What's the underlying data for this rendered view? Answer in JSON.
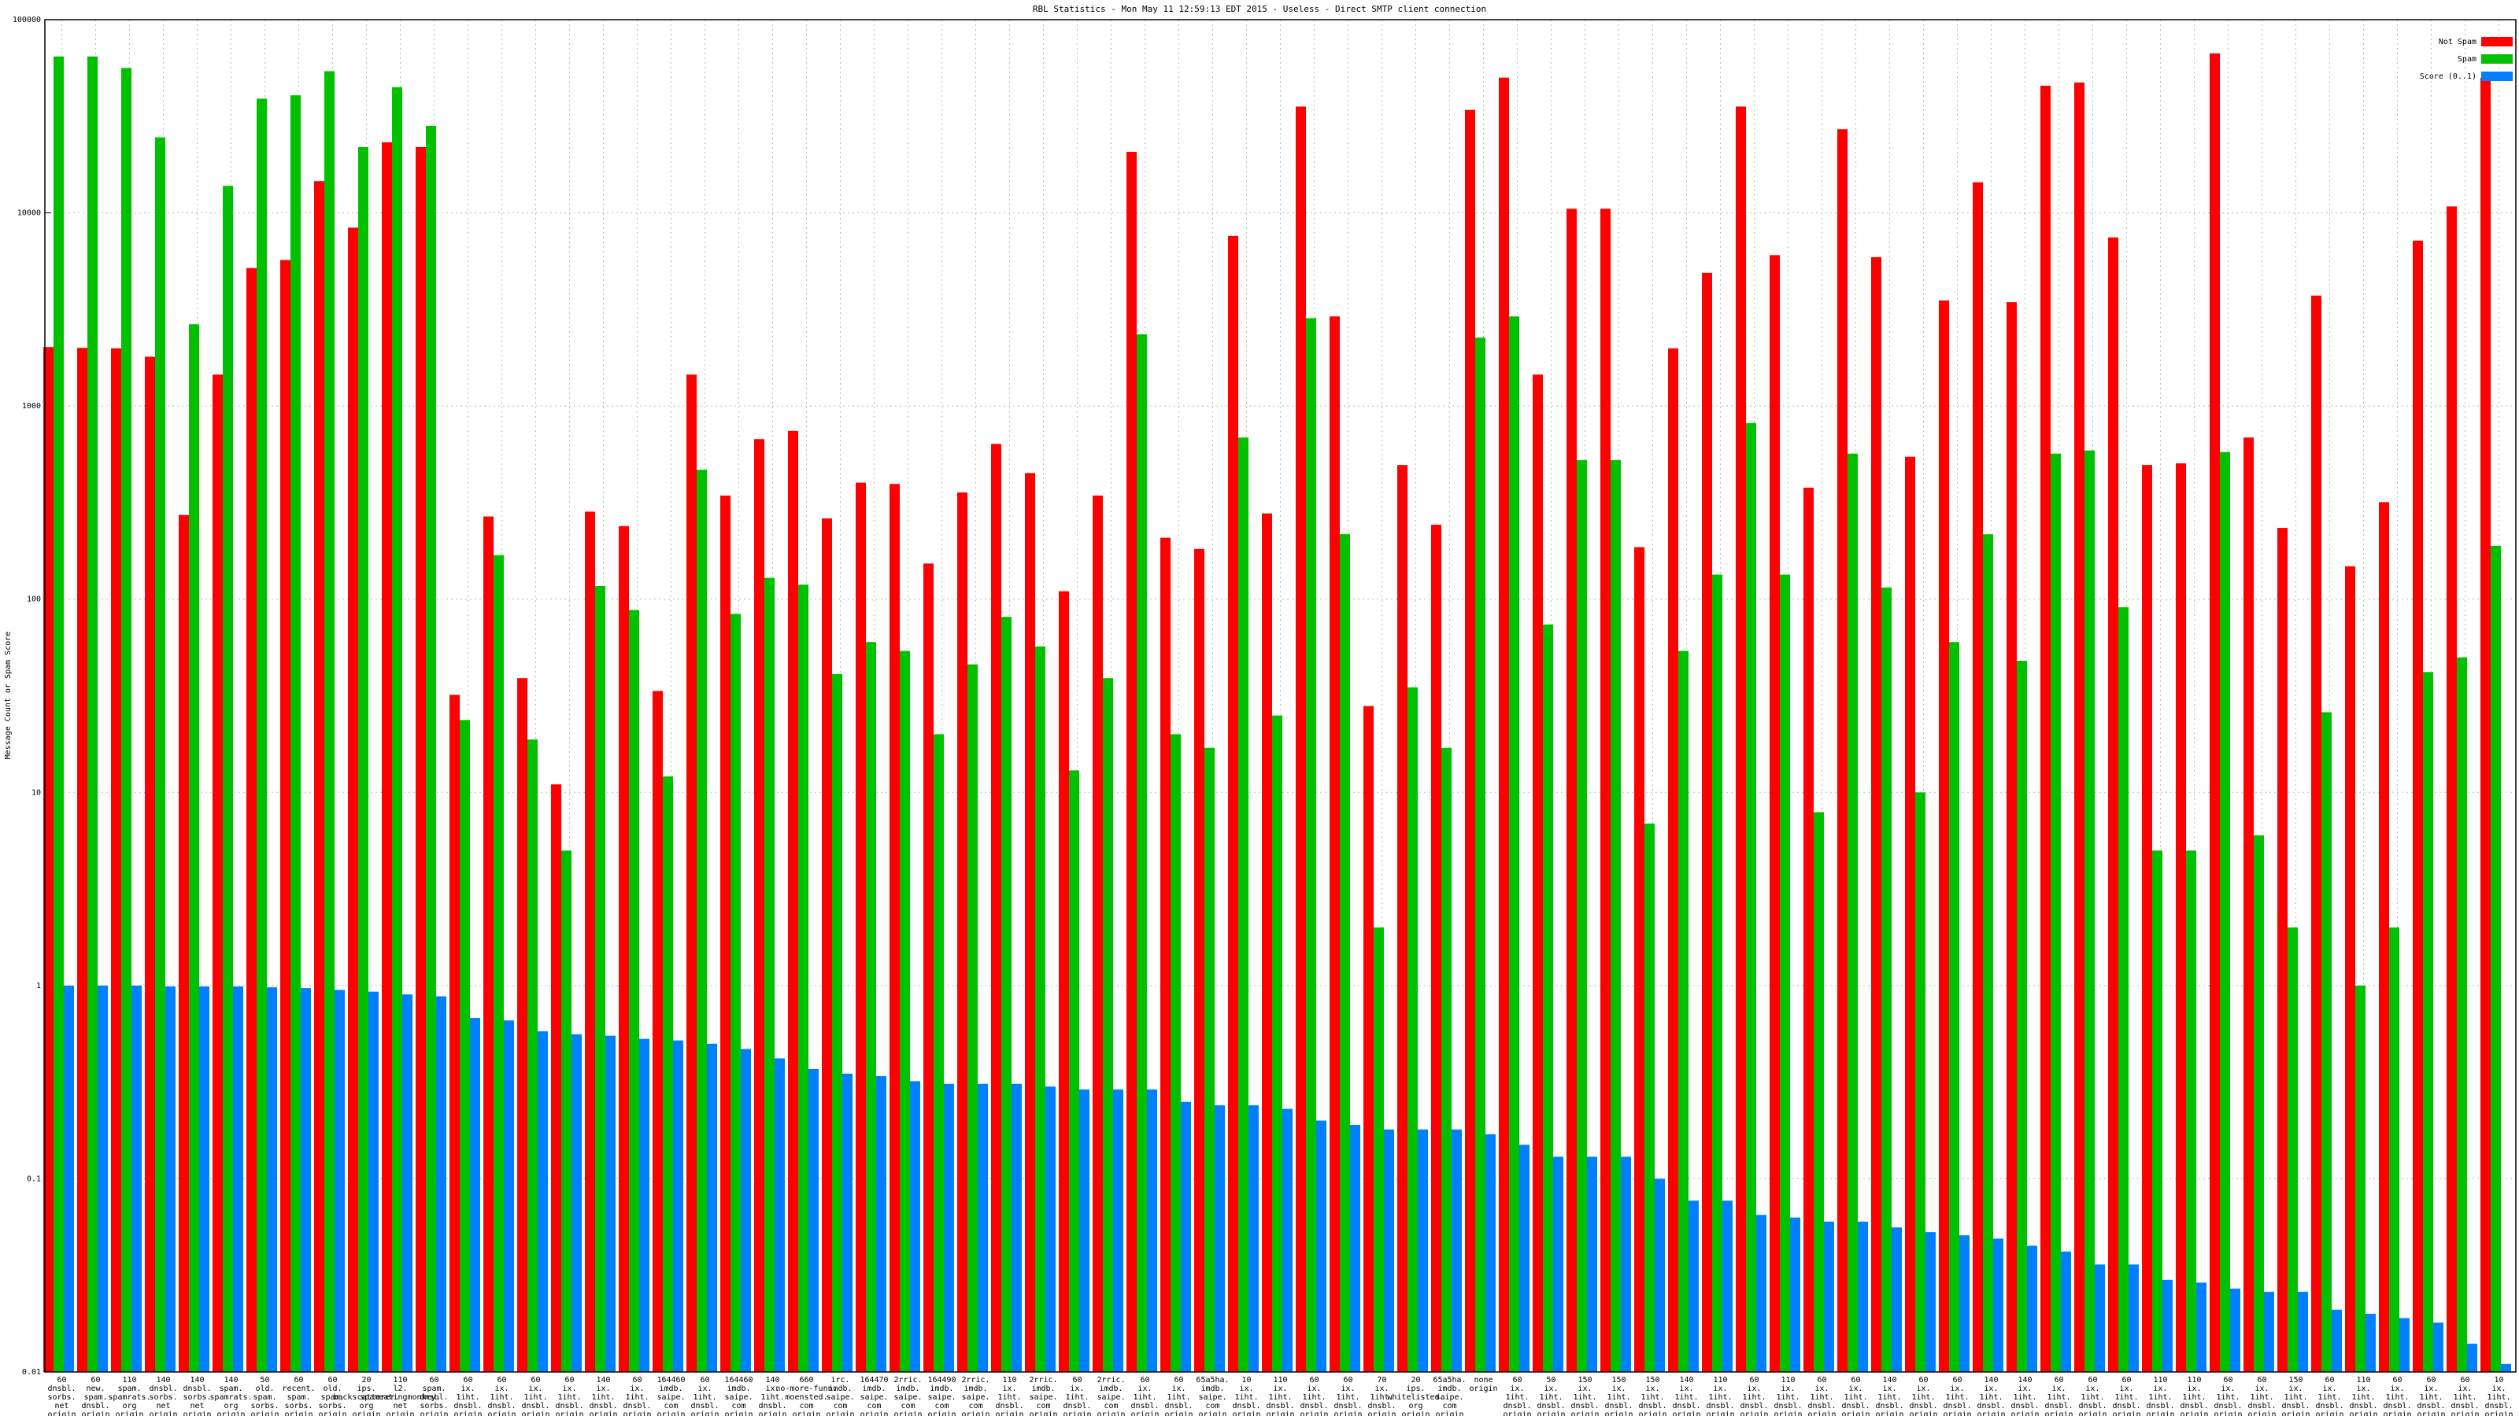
{
  "chart_data": {
    "type": "bar",
    "title": "RBL Statistics - Mon May 11 12:59:13 EDT 2015 - Useless - Direct SMTP client connection",
    "y_label": "Message Count or Spam Score",
    "ylog": true,
    "grid": true,
    "legend": "top-right",
    "ylim": [
      0.01,
      100000
    ],
    "yticks": [
      0.01,
      0.1,
      1,
      10,
      100,
      1000,
      10000,
      100000
    ],
    "categories": [
      "60\ndnsbl.\nsorbs.\nnet\norigin",
      "60\nnew.\nspam.\ndnsbl.\norigin",
      "110\nspam.\nspamrats.\norg\norigin",
      "140\ndnsbl.\nsorbs.\nnet\norigin",
      "140\ndnsbl.\nsorbs.\nnet\norigin",
      "140\nspam.\nspamrats.\norg\norigin",
      "50\nold.\nspam.\nsorbs.\norigin",
      "60\nrecent.\nspam.\nsorbs.\norigin",
      "60\nold.\nspam.\nsorbs.\norigin",
      "20\nips.\nbackscatterer.\norg\norigin",
      "110\nl2.\nspameatingmonkey.\nnet\norigin",
      "60\nspam.\ndnsbl.\nsorbs.\norigin",
      "60\nix.\n1iht.\ndnsbl.\norigin",
      "60\nix.\n1iht.\ndnsbl.\norigin",
      "60\nix.\n1iht.\ndnsbl.\norigin",
      "60\nix.\n1iht.\ndnsbl.\norigin",
      "140\nix.\n1iht.\ndnsbl.\norigin",
      "60\nix.\n1iht.\ndnsbl.\norigin",
      "164460\nimdb.\nsaipe.\ncom\norigin",
      "60\nix.\n1iht.\ndnsbl.\norigin",
      "164460\nimdb.\nsaipe.\ncom\norigin",
      "140\nix.\n1iht.\ndnsbl.\norigin",
      "660\nno-more-funn.\nmoensted.\ncom\norigin",
      "irc.\nimdb.\nsaipe.\ncom\norigin",
      "164470\nimdb.\nsaipe.\ncom\norigin",
      "2rric.\nimdb.\nsaipe.\ncom\norigin",
      "164490\nimdb.\nsaipe.\ncom\norigin",
      "2rric.\nimdb.\nsaipe.\ncom\norigin",
      "110\nix.\n1iht.\ndnsbl.\norigin",
      "2rric.\nimdb.\nsaipe.\ncom\norigin",
      "60\nix.\n1iht.\ndnsbl.\norigin",
      "2rric.\nimdb.\nsaipe.\ncom\norigin",
      "60\nix.\n1iht.\ndnsbl.\norigin",
      "60\nix.\n1iht.\ndnsbl.\norigin",
      "65a5ha.\nimdb.\nsaipe.\ncom\norigin",
      "10\nix.\n1iht.\ndnsbl.\norigin",
      "110\nix.\n1iht.\ndnsbl.\norigin",
      "60\nix.\n1iht.\ndnsbl.\norigin",
      "60\nix.\n1iht.\ndnsbl.\norigin",
      "70\nix.\n1iht.\ndnsbl.\norigin",
      "20\nips.\nwhitelisted.\norg\norigin",
      "65a5ha.\nimdb.\nsaipe.\ncom\norigin",
      "none\norigin",
      "60\nix.\n1iht.\ndnsbl.\norigin",
      "50\nix.\n1iht.\ndnsbl.\norigin",
      "150\nix.\n1iht.\ndnsbl.\norigin",
      "150\nix.\n1iht.\ndnsbl.\norigin",
      "150\nix.\n1iht.\ndnsbl.\norigin",
      "140\nix.\n1iht.\ndnsbl.\norigin",
      "110\nix.\n1iht.\ndnsbl.\norigin",
      "60\nix.\n1iht.\ndnsbl.\norigin",
      "110\nix.\n1iht.\ndnsbl.\norigin",
      "60\nix.\n1iht.\ndnsbl.\norigin",
      "60\nix.\n1iht.\ndnsbl.\norigin",
      "140\nix.\n1iht.\ndnsbl.\norigin",
      "60\nix.\n1iht.\ndnsbl.\norigin",
      "60\nix.\n1iht.\ndnsbl.\norigin",
      "140\nix.\n1iht.\ndnsbl.\norigin",
      "140\nix.\n1iht.\ndnsbl.\norigin",
      "60\nix.\n1iht.\ndnsbl.\norigin",
      "60\nix.\n1iht.\ndnsbl.\norigin",
      "60\nix.\n1iht.\ndnsbl.\norigin",
      "110\nix.\n1iht.\ndnsbl.\norigin",
      "110\nix.\n1iht.\ndnsbl.\norigin",
      "60\nix.\n1iht.\ndnsbl.\norigin",
      "60\nix.\n1iht.\ndnsbl.\norigin",
      "150\nix.\n1iht.\ndnsbl.\norigin",
      "60\nix.\n1iht.\ndnsbl.\norigin",
      "110\nix.\n1iht.\ndnsbl.\norigin",
      "60\nix.\n1iht.\ndnsbl.\norigin",
      "60\nix.\n1iht.\ndnsbl.\norigin",
      "60\nix.\n1iht.\ndnsbl.\norigin",
      "10\nix.\n1iht.\ndnsbl.\norigin"
    ],
    "series": [
      {
        "name": "Not Spam",
        "color": "#ff0000",
        "values": [
          2020,
          2000,
          1990,
          1800,
          273,
          1455,
          5180,
          5700,
          14600,
          8380,
          23200,
          21900,
          32,
          268,
          39,
          11,
          284,
          239,
          33.5,
          1455,
          344,
          674,
          743,
          262,
          401,
          395,
          153,
          357,
          637,
          450,
          110,
          344,
          20700,
          208,
          182,
          7600,
          278,
          35500,
          2910,
          28,
          495,
          243,
          34100,
          50100,
          1455,
          10500,
          10500,
          186,
          1990,
          4890,
          35500,
          6040,
          378,
          27100,
          5900,
          546,
          3520,
          14400,
          3450,
          45500,
          47300,
          7460,
          495,
          505,
          66900,
          687,
          234,
          3730,
          148,
          318,
          7180,
          10800,
          50100
        ]
      },
      {
        "name": "Spam",
        "color": "#00c000",
        "values": [
          64500,
          64500,
          56200,
          24600,
          2650,
          13800,
          39000,
          40600,
          54100,
          21900,
          44700,
          28200,
          23.7,
          169,
          18.8,
          5,
          117,
          88,
          12.1,
          468,
          84,
          129,
          119,
          41,
          60,
          54,
          20,
          46,
          81,
          57,
          13,
          39,
          2350,
          20,
          17,
          687,
          25,
          2850,
          217,
          2,
          35,
          17,
          2260,
          2910,
          74,
          525,
          525,
          6.9,
          54,
          134,
          817,
          134,
          7.9,
          567,
          115,
          10,
          60,
          217,
          48,
          567,
          589,
          91,
          5,
          5,
          578,
          6,
          2,
          26,
          1,
          2,
          42,
          50,
          189
        ]
      },
      {
        "name": "Score (0..1)",
        "color": "#0080ff",
        "values": [
          1,
          1,
          1,
          0.99,
          0.99,
          0.99,
          0.98,
          0.97,
          0.95,
          0.93,
          0.9,
          0.88,
          0.68,
          0.66,
          0.58,
          0.56,
          0.55,
          0.53,
          0.52,
          0.5,
          0.47,
          0.42,
          0.37,
          0.35,
          0.34,
          0.32,
          0.31,
          0.31,
          0.31,
          0.3,
          0.29,
          0.29,
          0.29,
          0.25,
          0.24,
          0.24,
          0.23,
          0.2,
          0.19,
          0.18,
          0.18,
          0.18,
          0.17,
          0.15,
          0.13,
          0.13,
          0.13,
          0.1,
          0.077,
          0.077,
          0.065,
          0.063,
          0.06,
          0.06,
          0.056,
          0.053,
          0.051,
          0.049,
          0.045,
          0.042,
          0.036,
          0.036,
          0.03,
          0.029,
          0.027,
          0.026,
          0.026,
          0.021,
          0.02,
          0.019,
          0.018,
          0.014,
          0.011
        ]
      }
    ]
  }
}
